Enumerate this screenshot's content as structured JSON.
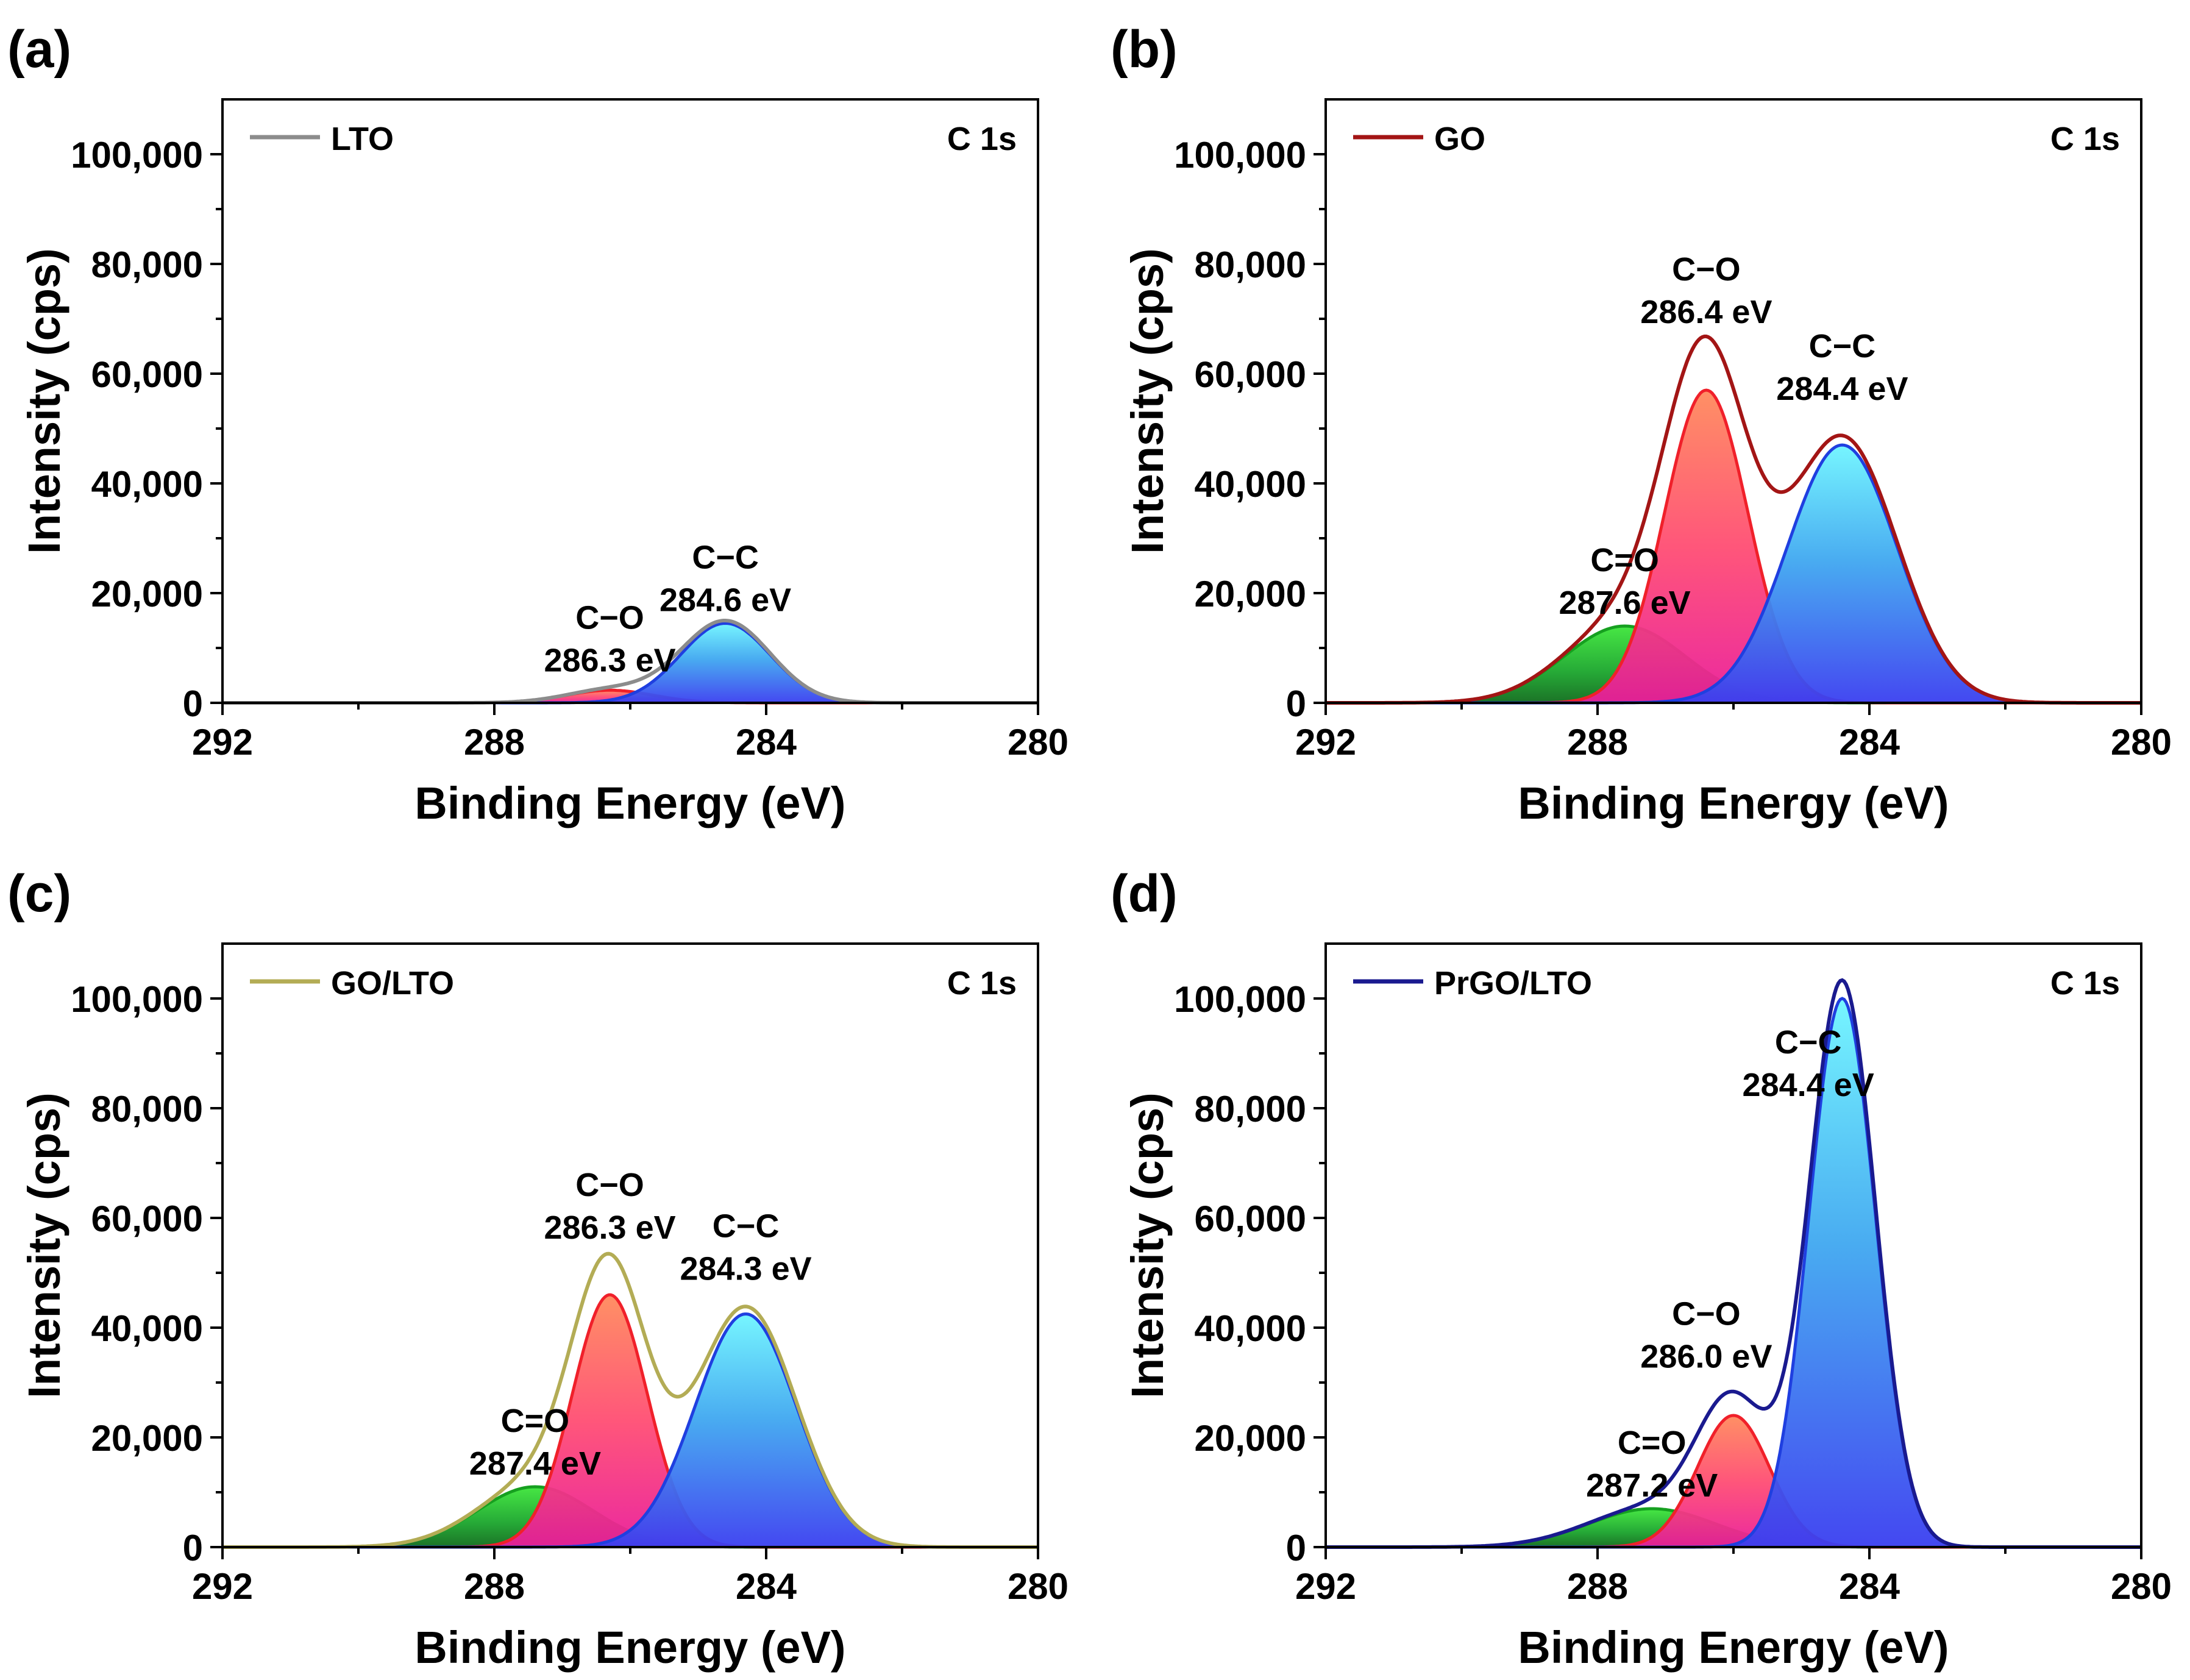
{
  "figure": {
    "panels": [
      {
        "letter": "(a)",
        "legend": "LTO",
        "core_label": "C 1s"
      },
      {
        "letter": "(b)",
        "legend": "GO",
        "core_label": "C 1s"
      },
      {
        "letter": "(c)",
        "legend": "GO/LTO",
        "core_label": "C 1s"
      },
      {
        "letter": "(d)",
        "legend": "PrGO/LTO",
        "core_label": "C 1s"
      }
    ]
  },
  "chart_data": [
    {
      "type": "area",
      "panel_label": "(a)",
      "title": "C 1s",
      "xlabel": "Binding Energy (eV)",
      "ylabel": "Intensity (cps)",
      "xlim": [
        292,
        280
      ],
      "ylim": [
        0,
        110000
      ],
      "xticks": [
        "292",
        "288",
        "284",
        "280"
      ],
      "yticks": [
        "0",
        "20,000",
        "40,000",
        "60,000",
        "80,000",
        "100,000"
      ],
      "legend": "LTO",
      "envelope_color": "#8c8c8c",
      "components": [
        {
          "name": "C−C",
          "center": 284.6,
          "amplitude": 14500,
          "fwhm": 1.55,
          "label": "C−C",
          "energy_label": "284.6 eV"
        },
        {
          "name": "C−O",
          "center": 286.3,
          "amplitude": 2300,
          "fwhm": 1.5,
          "label": "C−O",
          "energy_label": "286.3 eV"
        }
      ]
    },
    {
      "type": "area",
      "panel_label": "(b)",
      "title": "C 1s",
      "xlabel": "Binding Energy (eV)",
      "ylabel": "Intensity (cps)",
      "xlim": [
        292,
        280
      ],
      "ylim": [
        0,
        110000
      ],
      "xticks": [
        "292",
        "288",
        "284",
        "280"
      ],
      "yticks": [
        "0",
        "20,000",
        "40,000",
        "60,000",
        "80,000",
        "100,000"
      ],
      "legend": "GO",
      "envelope_color": "#a31515",
      "components": [
        {
          "name": "C−C",
          "center": 284.4,
          "amplitude": 47000,
          "fwhm": 1.9,
          "label": "C−C",
          "energy_label": "284.4 eV"
        },
        {
          "name": "C−O",
          "center": 286.4,
          "amplitude": 57000,
          "fwhm": 1.45,
          "label": "C−O",
          "energy_label": "286.4 eV"
        },
        {
          "name": "C=O",
          "center": 287.6,
          "amplitude": 14000,
          "fwhm": 2.1,
          "label": "C=O",
          "energy_label": "287.6 eV"
        }
      ]
    },
    {
      "type": "area",
      "panel_label": "(c)",
      "title": "C 1s",
      "xlabel": "Binding Energy (eV)",
      "ylabel": "Intensity (cps)",
      "xlim": [
        292,
        280
      ],
      "ylim": [
        0,
        110000
      ],
      "xticks": [
        "292",
        "288",
        "284",
        "280"
      ],
      "yticks": [
        "0",
        "20,000",
        "40,000",
        "60,000",
        "80,000",
        "100,000"
      ],
      "legend": "GO/LTO",
      "envelope_color": "#b3ac55",
      "components": [
        {
          "name": "C−C",
          "center": 284.3,
          "amplitude": 42500,
          "fwhm": 1.75,
          "label": "C−C",
          "energy_label": "284.3 eV"
        },
        {
          "name": "C−O",
          "center": 286.3,
          "amplitude": 46000,
          "fwhm": 1.3,
          "label": "C−O",
          "energy_label": "286.3 eV"
        },
        {
          "name": "C=O",
          "center": 287.4,
          "amplitude": 11000,
          "fwhm": 2.0,
          "label": "C=O",
          "energy_label": "287.4 eV"
        }
      ]
    },
    {
      "type": "area",
      "panel_label": "(d)",
      "title": "C 1s",
      "xlabel": "Binding Energy (eV)",
      "ylabel": "Intensity (cps)",
      "xlim": [
        292,
        280
      ],
      "ylim": [
        0,
        110000
      ],
      "xticks": [
        "292",
        "288",
        "284",
        "280"
      ],
      "yticks": [
        "0",
        "20,000",
        "40,000",
        "60,000",
        "80,000",
        "100,000"
      ],
      "legend": "PrGO/LTO",
      "envelope_color": "#1a1a8f",
      "components": [
        {
          "name": "C−C",
          "center": 284.4,
          "amplitude": 100000,
          "fwhm": 1.15,
          "label": "C−C",
          "energy_label": "284.4 eV"
        },
        {
          "name": "C−O",
          "center": 286.0,
          "amplitude": 24000,
          "fwhm": 1.25,
          "label": "C−O",
          "energy_label": "286.0 eV"
        },
        {
          "name": "C=O",
          "center": 287.2,
          "amplitude": 7000,
          "fwhm": 2.2,
          "label": "C=O",
          "energy_label": "287.2 eV"
        }
      ]
    }
  ]
}
